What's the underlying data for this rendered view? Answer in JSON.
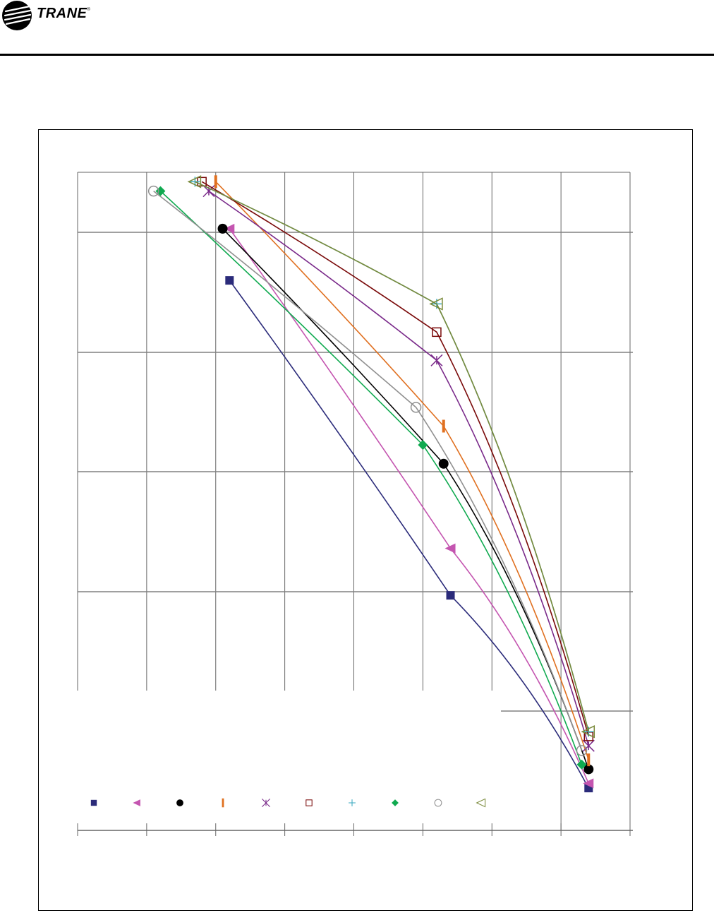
{
  "header": {
    "brand": "TRANE",
    "brand_mark": "®",
    "logo": "trane-circle-logo"
  },
  "colors": {
    "rule": "#000000",
    "grid": "#808080",
    "series": [
      "#2b2b7a",
      "#c455b0",
      "#000000",
      "#e07020",
      "#7a2a8a",
      "#7a0a0a",
      "#3aaac0",
      "#10aa50",
      "#909090",
      "#7a8a3a"
    ]
  },
  "chart_data": {
    "type": "line",
    "title": "",
    "xlabel": "",
    "ylabel": "",
    "xlim": [
      0,
      8
    ],
    "ylim": [
      0,
      7
    ],
    "grid": true,
    "legend_position": "bottom",
    "series": [
      {
        "marker": "square-filled",
        "points": [
          [
            2.2,
            5.85
          ],
          [
            5.4,
            2.5
          ],
          [
            7.4,
            0.45
          ]
        ]
      },
      {
        "marker": "triangle-left",
        "points": [
          [
            2.2,
            6.4
          ],
          [
            5.4,
            3.0
          ],
          [
            7.4,
            0.5
          ]
        ]
      },
      {
        "marker": "circle-filled",
        "points": [
          [
            2.1,
            6.4
          ],
          [
            5.3,
            3.9
          ],
          [
            7.4,
            0.65
          ]
        ]
      },
      {
        "marker": "bar",
        "points": [
          [
            2.0,
            6.9
          ],
          [
            5.3,
            4.3
          ],
          [
            7.4,
            0.75
          ]
        ]
      },
      {
        "marker": "x",
        "points": [
          [
            1.9,
            6.8
          ],
          [
            5.2,
            5.0
          ],
          [
            7.4,
            0.9
          ]
        ]
      },
      {
        "marker": "square-open",
        "points": [
          [
            1.8,
            6.9
          ],
          [
            5.2,
            5.3
          ],
          [
            7.4,
            1.0
          ]
        ]
      },
      {
        "marker": "plus",
        "points": [
          [
            1.7,
            6.9
          ],
          [
            5.2,
            5.6
          ],
          [
            7.4,
            1.05
          ]
        ]
      },
      {
        "marker": "diamond-filled",
        "points": [
          [
            1.2,
            6.8
          ],
          [
            5.0,
            4.1
          ],
          [
            7.3,
            0.7
          ]
        ]
      },
      {
        "marker": "circle-open",
        "points": [
          [
            1.1,
            6.8
          ],
          [
            4.9,
            4.5
          ],
          [
            7.3,
            0.85
          ]
        ]
      },
      {
        "marker": "triangle-open",
        "points": [
          [
            1.7,
            6.9
          ],
          [
            5.2,
            5.6
          ],
          [
            7.4,
            1.05
          ]
        ]
      }
    ]
  }
}
